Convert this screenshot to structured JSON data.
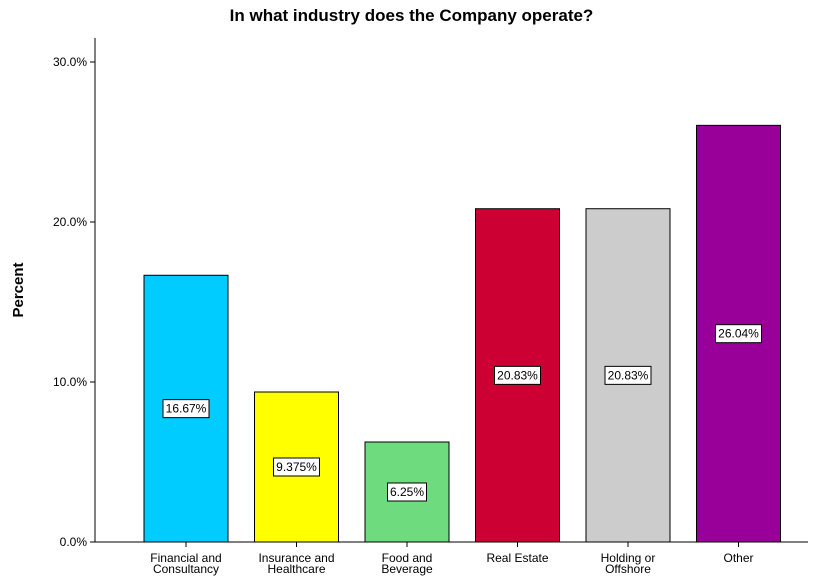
{
  "chart_data": {
    "type": "bar",
    "title": "In what industry does the Company operate?",
    "xlabel": "",
    "ylabel": "Percent",
    "ylim": [
      0,
      31.5
    ],
    "yticks": [
      "0.0%",
      "10.0%",
      "20.0%",
      "30.0%"
    ],
    "ytick_values": [
      0,
      10,
      20,
      30
    ],
    "categories": [
      [
        "Financial and",
        "Consultancy"
      ],
      [
        "Insurance and",
        "Healthcare"
      ],
      [
        "Food and",
        "Beverage"
      ],
      [
        "Real Estate"
      ],
      [
        "Holding or",
        "Offshore"
      ],
      [
        "Other"
      ]
    ],
    "values": [
      16.67,
      9.375,
      6.25,
      20.83,
      20.83,
      26.04
    ],
    "data_labels": [
      "16.67%",
      "9.375%",
      "6.25%",
      "20.83%",
      "20.83%",
      "26.04%"
    ],
    "colors": [
      "#00ccff",
      "#ffff00",
      "#6ddb7e",
      "#cc0033",
      "#cccccc",
      "#990099"
    ],
    "grid": false,
    "legend": "none"
  }
}
